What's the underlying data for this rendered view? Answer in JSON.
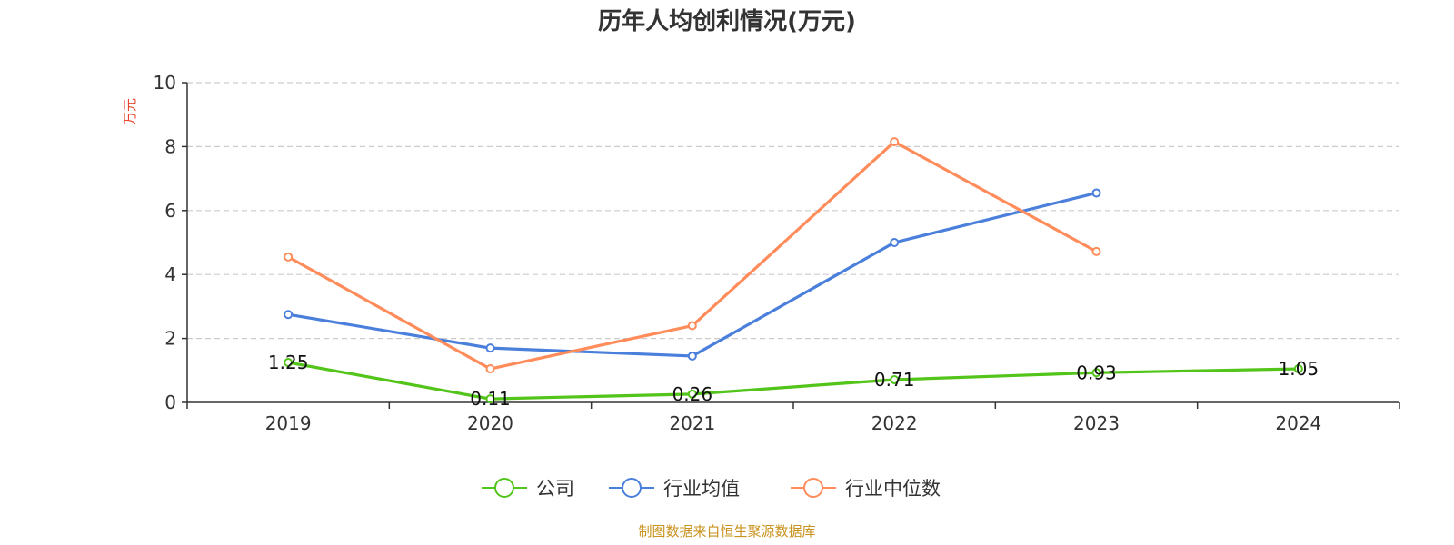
{
  "chart_data": {
    "type": "line",
    "title": "历年人均创利情况(万元)",
    "ylabel": "万元",
    "xlabel": "",
    "categories": [
      "2019",
      "2020",
      "2021",
      "2022",
      "2023",
      "2024"
    ],
    "ylim": [
      0,
      10
    ],
    "yticks": [
      0,
      2,
      4,
      6,
      8,
      10
    ],
    "grid": true,
    "legend_position": "bottom",
    "series": [
      {
        "name": "公司",
        "color": "#52c41a",
        "values": [
          1.25,
          0.11,
          0.26,
          0.71,
          0.93,
          1.05
        ],
        "labels": [
          "1.25",
          "0.11",
          "0.26",
          "0.71",
          "0.93",
          "1.05"
        ],
        "show_labels": true
      },
      {
        "name": "行业均值",
        "color": "#4a7fdb",
        "values": [
          2.75,
          1.7,
          1.45,
          5.0,
          6.55,
          null
        ],
        "show_labels": false
      },
      {
        "name": "行业中位数",
        "color": "#ff8c5a",
        "values": [
          4.55,
          1.05,
          2.4,
          8.15,
          4.72,
          null
        ],
        "show_labels": false
      }
    ],
    "source": "制图数据来自恒生聚源数据库",
    "unit_color": "#e8452c",
    "source_color": "#c9931f",
    "axis_color": "#333333",
    "grid_color": "#cccccc"
  }
}
